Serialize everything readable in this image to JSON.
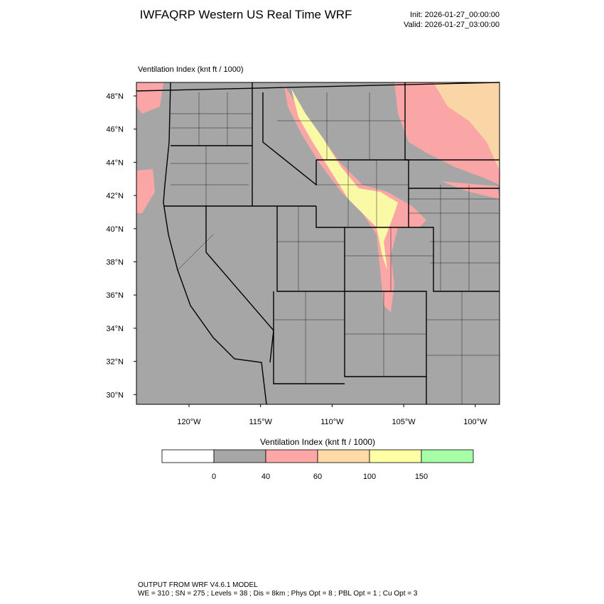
{
  "header": {
    "title": "IWFAQRP Western US Real Time WRF",
    "init": "Init: 2026-01-27_00:00:00",
    "valid": "Valid: 2026-01-27_03:00:00"
  },
  "map": {
    "subtitle": "Ventilation Index   (knt ft / 1000)",
    "lat_labels": [
      "48°N",
      "46°N",
      "44°N",
      "42°N",
      "40°N",
      "38°N",
      "36°N",
      "34°N",
      "32°N",
      "30°N"
    ],
    "lon_labels": [
      "120°W",
      "115°W",
      "110°W",
      "105°W",
      "100°W"
    ]
  },
  "colorbar": {
    "title": "Ventilation Index  (knt ft / 1000)",
    "levels": [
      "0",
      "40",
      "60",
      "100",
      "150"
    ],
    "colors": [
      "#ffffff",
      "#a6a6a6",
      "#ffa6a6",
      "#ffd9a6",
      "#ffffa6",
      "#a6ffa6"
    ]
  },
  "footer": {
    "line1": "OUTPUT FROM WRF V4.6.1 MODEL",
    "line2": "WE = 310 ; SN = 275 ; Levels = 38 ; Dis = 8km ; Phys Opt = 8 ; PBL Opt = 1 ; Cu Opt = 3"
  }
}
